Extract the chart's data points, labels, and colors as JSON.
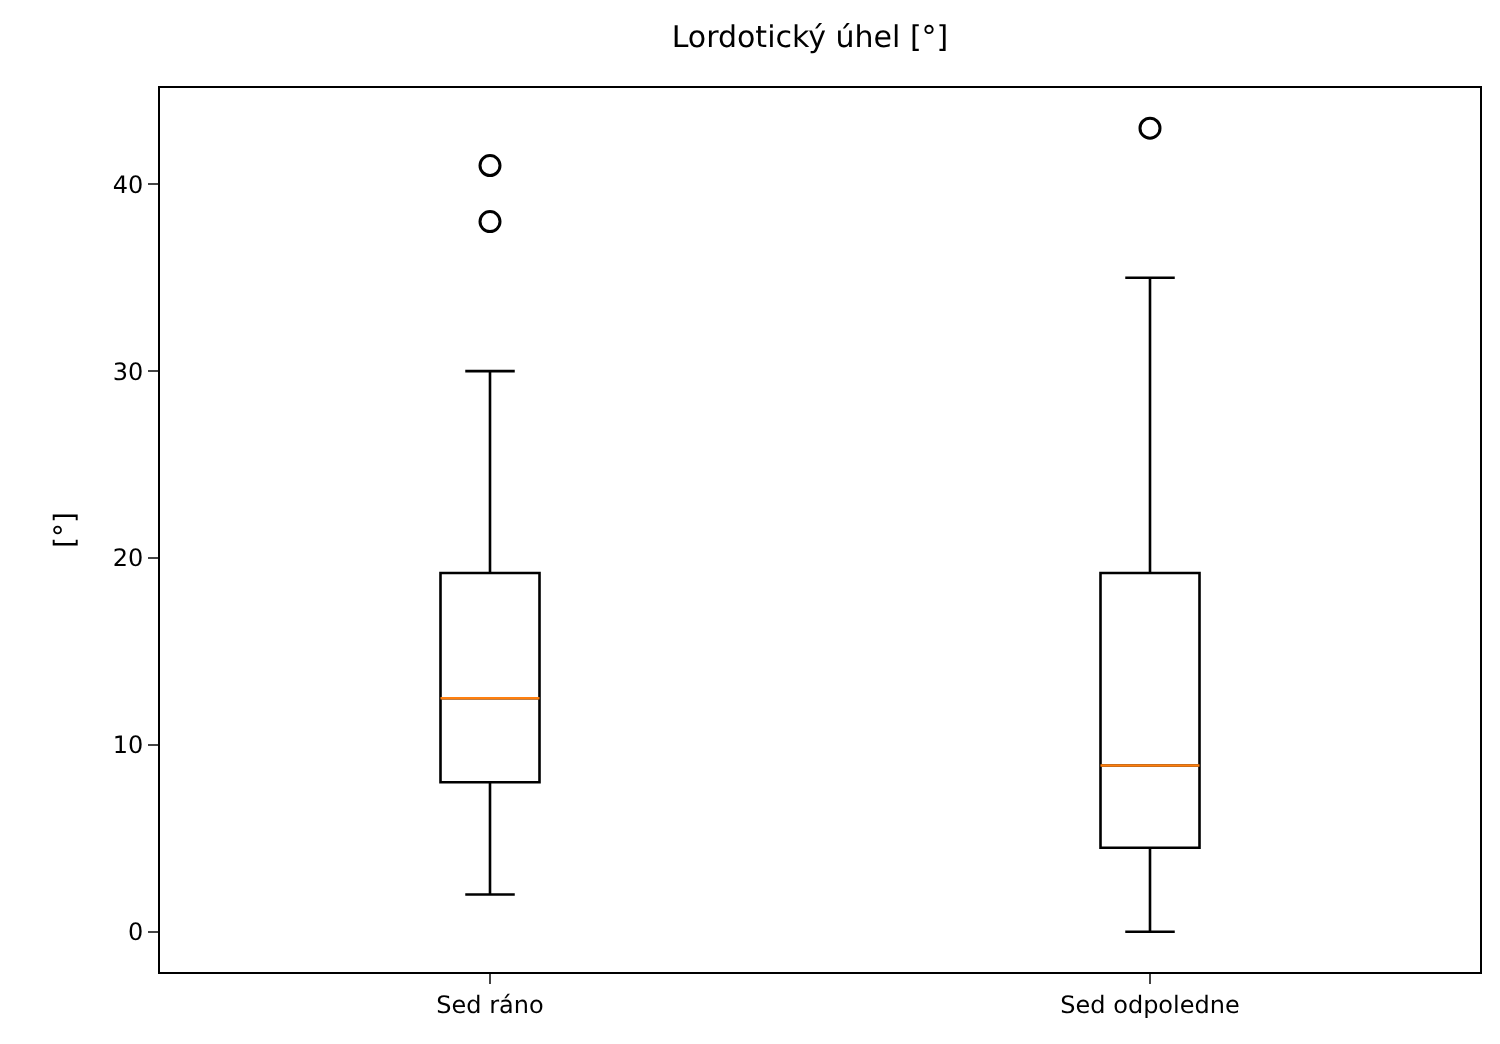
{
  "chart_data": {
    "type": "box",
    "title": "Lordotický úhel [°]",
    "ylabel": "[°]",
    "categories": [
      "Sed ráno",
      "Sed odpoledne"
    ],
    "boxes": [
      {
        "low": 2,
        "q1": 8,
        "median": 12.5,
        "q3": 19.2,
        "high": 30,
        "outliers": [
          38,
          41
        ]
      },
      {
        "low": 0,
        "q1": 4.5,
        "median": 8.9,
        "q3": 19.2,
        "high": 35,
        "outliers": [
          43
        ]
      }
    ],
    "color": "#000000",
    "marker": "circle",
    "ylim": [
      -2.15,
      45.15
    ],
    "yticks": [
      0,
      10,
      20,
      30,
      40
    ]
  }
}
